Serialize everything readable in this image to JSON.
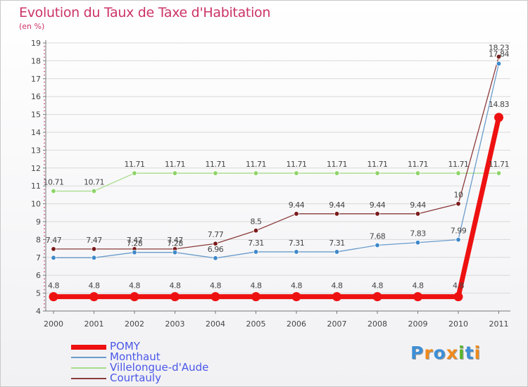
{
  "header": {
    "title": "Evolution du Taux de Taxe d'Habitation",
    "unit": "(en %)"
  },
  "logo": {
    "text": "Proxiti",
    "colors": [
      "#3d8fd6",
      "#f08a1c",
      "#3d8fd6",
      "#f08a1c",
      "#5ab52f",
      "#3d8fd6",
      "#f08a1c"
    ]
  },
  "colors": {
    "title": "#cc3366",
    "axis": "#777777",
    "grid": "#d9d9d9",
    "label": "#444444",
    "legend_text": "#4a57e8"
  },
  "chart_data": {
    "type": "line",
    "title": "Evolution du Taux de Taxe d'Habitation",
    "ylabel": "(en %)",
    "xlabel": "",
    "ylim": [
      4,
      19
    ],
    "yticks": [
      "4",
      "5",
      "6",
      "7",
      "8",
      "9",
      "10",
      "11",
      "12",
      "13",
      "14",
      "15",
      "16",
      "17",
      "18",
      "19"
    ],
    "categories": [
      "2000",
      "2001",
      "2002",
      "2003",
      "2004",
      "2005",
      "2006",
      "2007",
      "2008",
      "2009",
      "2010",
      "2011"
    ],
    "grid": "horizontal",
    "legend_position": "bottom-left",
    "series": [
      {
        "name": "Villelongue-d'Aude",
        "color": "#8fd46a",
        "line_color": "#a9dc8c",
        "values": [
          10.71,
          10.71,
          11.71,
          11.71,
          11.71,
          11.71,
          11.71,
          11.71,
          11.71,
          11.71,
          11.71,
          11.71
        ],
        "labels": [
          "10.71",
          "10.71",
          "11.71",
          "11.71",
          "11.71",
          "11.71",
          "11.71",
          "11.71",
          "11.71",
          "11.71",
          "11.71",
          "11.71"
        ]
      },
      {
        "name": "Courtauly",
        "color": "#7a1a1a",
        "line_color": "#8b3a3a",
        "values": [
          7.47,
          7.47,
          7.47,
          7.47,
          7.77,
          8.5,
          9.44,
          9.44,
          9.44,
          9.44,
          10,
          18.23
        ],
        "labels": [
          "7.47",
          "7.47",
          "7.47",
          "7.47",
          "7.77",
          "8.5",
          "9.44",
          "9.44",
          "9.44",
          "9.44",
          "10",
          "18.23"
        ]
      },
      {
        "name": "Monthaut",
        "color": "#3e88c9",
        "line_color": "#6a9ccb",
        "values": [
          6.98,
          6.98,
          7.28,
          7.28,
          6.96,
          7.31,
          7.31,
          7.31,
          7.68,
          7.83,
          7.99,
          17.84
        ],
        "labels": [
          "",
          "",
          "7.28",
          "7.28",
          "6.96",
          "7.31",
          "7.31",
          "7.31",
          "7.68",
          "7.83",
          "7.99",
          "17.84"
        ]
      },
      {
        "name": "POMY",
        "color": "#ee1111",
        "line_color": "#ee1111",
        "values": [
          4.8,
          4.8,
          4.8,
          4.8,
          4.8,
          4.8,
          4.8,
          4.8,
          4.8,
          4.8,
          4.8,
          14.83
        ],
        "labels": [
          "4.8",
          "4.8",
          "4.8",
          "4.8",
          "4.8",
          "4.8",
          "4.8",
          "4.8",
          "4.8",
          "4.8",
          "4.8",
          "14.83"
        ]
      }
    ],
    "legend": [
      "POMY",
      "Monthaut",
      "Villelongue-d'Aude",
      "Courtauly"
    ]
  }
}
